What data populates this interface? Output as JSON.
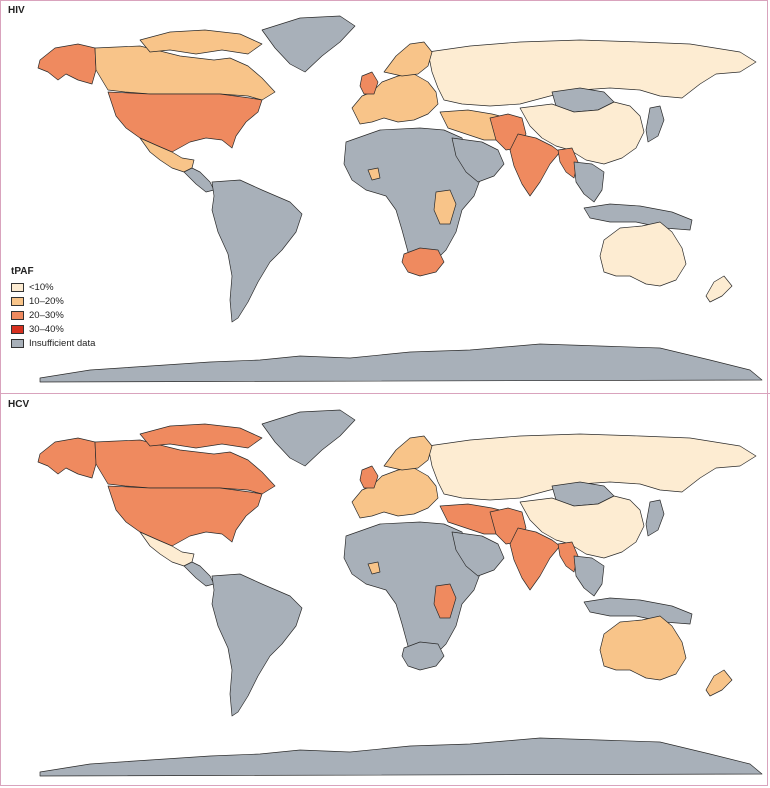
{
  "colors": {
    "lt10": "#fdecd2",
    "r10_20": "#f8c489",
    "r20_30": "#ef8a5f",
    "r30_40": "#d7301f",
    "insufficient": "#a8b0b9",
    "border": "#2b2b2b",
    "frame": "#d9a3bd"
  },
  "legend": {
    "title": "tPAF",
    "items": [
      {
        "label": "<10%",
        "color_key": "lt10"
      },
      {
        "label": "10–20%",
        "color_key": "r10_20"
      },
      {
        "label": "20–30%",
        "color_key": "r20_30"
      },
      {
        "label": "30–40%",
        "color_key": "r30_40"
      },
      {
        "label": "Insufficient data",
        "color_key": "insufficient"
      }
    ]
  },
  "panels": [
    {
      "title": "HIV",
      "regions": {
        "alaska": "r20_30",
        "canada": "r10_20",
        "canada_arctic": "r10_20",
        "greenland": "insufficient",
        "usa": "r20_30",
        "mexico": "r10_20",
        "central_america": "insufficient",
        "south_america": "insufficient",
        "africa": "insufficient",
        "south_africa": "r20_30",
        "tanzania_kenya": "r10_20",
        "west_africa_small": "r10_20",
        "europe_west": "r10_20",
        "uk": "r20_30",
        "scandinavia": "r10_20",
        "russia": "lt10",
        "mongolia": "insufficient",
        "china": "lt10",
        "india": "r20_30",
        "pakistan": "r20_30",
        "middle_east": "r10_20",
        "arabia": "insufficient",
        "se_asia": "insufficient",
        "myanmar": "r20_30",
        "indonesia": "insufficient",
        "australia": "lt10",
        "new_zealand": "lt10",
        "japan": "insufficient",
        "antarctica": "insufficient"
      }
    },
    {
      "title": "HCV",
      "regions": {
        "alaska": "r20_30",
        "canada": "r20_30",
        "canada_arctic": "r20_30",
        "greenland": "insufficient",
        "usa": "r20_30",
        "mexico": "lt10",
        "central_america": "insufficient",
        "south_america": "insufficient",
        "africa": "insufficient",
        "south_africa": "insufficient",
        "tanzania_kenya": "r20_30",
        "west_africa_small": "r10_20",
        "europe_west": "r10_20",
        "uk": "r20_30",
        "scandinavia": "r10_20",
        "russia": "lt10",
        "mongolia": "insufficient",
        "china": "lt10",
        "india": "r20_30",
        "pakistan": "r20_30",
        "middle_east": "r20_30",
        "arabia": "insufficient",
        "se_asia": "insufficient",
        "myanmar": "r20_30",
        "indonesia": "insufficient",
        "australia": "r10_20",
        "new_zealand": "r10_20",
        "japan": "insufficient",
        "antarctica": "insufficient"
      }
    }
  ]
}
